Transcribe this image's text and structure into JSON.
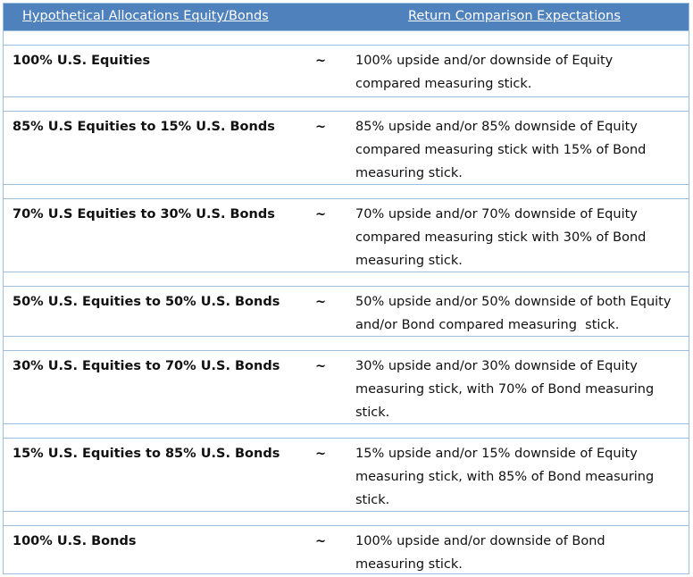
{
  "header": {
    "left": "Hypothetical Allocations Equity/Bonds",
    "right": "Return Comparison Expectations"
  },
  "rows": [
    {
      "allocation": "100% U.S. Equities",
      "sep": "~",
      "lines": [
        "100% upside and/or downside of Equity",
        "compared measuring stick."
      ]
    },
    {
      "allocation": "85% U.S Equities to 15% U.S. Bonds",
      "sep": "~",
      "lines": [
        "85% upside and/or 85% downside of Equity",
        "compared measuring stick with 15% of Bond",
        "measuring stick."
      ]
    },
    {
      "allocation": "70% U.S Equities to 30% U.S. Bonds",
      "sep": "~",
      "lines": [
        "70% upside and/or 70% downside of Equity",
        "compared measuring stick with 30% of Bond",
        "measuring stick."
      ]
    },
    {
      "allocation": "50% U.S. Equities to 50% U.S. Bonds",
      "sep": "~",
      "lines": [
        "50% upside and/or 50% downside of both Equity",
        "and/or Bond compared measuring  stick."
      ]
    },
    {
      "allocation": "30% U.S. Equities to 70% U.S. Bonds",
      "sep": "~",
      "lines": [
        "30% upside and/or 30% downside of Equity",
        "measuring stick, with 70% of Bond measuring",
        "stick."
      ]
    },
    {
      "allocation": "15% U.S. Equities to 85% U.S. Bonds",
      "sep": "~",
      "lines": [
        "15% upside and/or 15% downside of Equity",
        "measuring stick, with 85% of Bond measuring",
        "stick."
      ]
    },
    {
      "allocation": "100% U.S. Bonds",
      "sep": "~",
      "lines": [
        "100% upside and/or downside of Bond",
        "measuring stick."
      ]
    }
  ]
}
